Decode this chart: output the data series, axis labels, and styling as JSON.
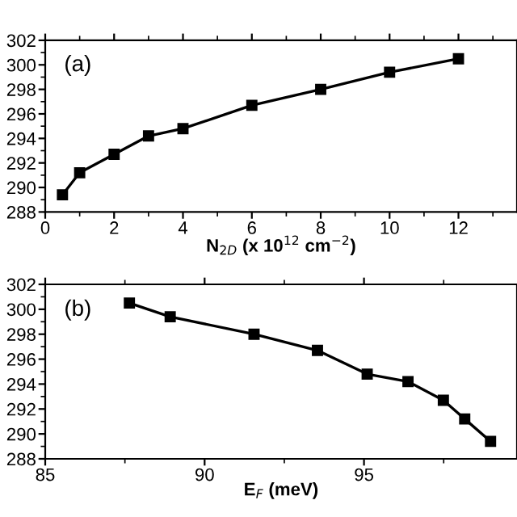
{
  "chart_data": [
    {
      "type": "line",
      "xlabel": "N$_{2D}$ (x 10$^{12}$ cm$^{−2}$)",
      "annotations": [
        "(a)"
      ],
      "x": [
        0.5,
        1,
        2,
        3,
        4,
        6,
        8,
        10,
        12
      ],
      "series": [
        {
          "color": "#000000",
          "values": [
            289.4,
            291.2,
            292.7,
            294.2,
            294.8,
            296.7,
            298.0,
            299.4,
            300.5
          ]
        }
      ],
      "xlim": [
        0,
        13.7
      ],
      "xticks": [
        0,
        2,
        4,
        6,
        8,
        10,
        12
      ],
      "ylim": [
        288,
        302
      ],
      "yticks": [
        288,
        290,
        292,
        294,
        296,
        298,
        300,
        302
      ],
      "marker": "square",
      "line_style": "solid"
    },
    {
      "type": "line",
      "xlabel": "E$_{F}$ (meV)",
      "annotations": [
        "(b)"
      ],
      "x": [
        87.64,
        88.92,
        91.55,
        93.54,
        95.1,
        96.38,
        97.49,
        98.16,
        98.97
      ],
      "series": [
        {
          "color": "#000000",
          "values": [
            300.5,
            299.4,
            298.0,
            296.7,
            294.8,
            294.2,
            292.7,
            291.2,
            289.4
          ]
        }
      ],
      "xlim": [
        85,
        99.8
      ],
      "xticks": [
        85,
        90,
        95
      ],
      "ylim": [
        288,
        302
      ],
      "yticks": [
        288,
        290,
        292,
        294,
        296,
        298,
        300,
        302
      ],
      "marker": "square",
      "line_style": "solid"
    }
  ]
}
